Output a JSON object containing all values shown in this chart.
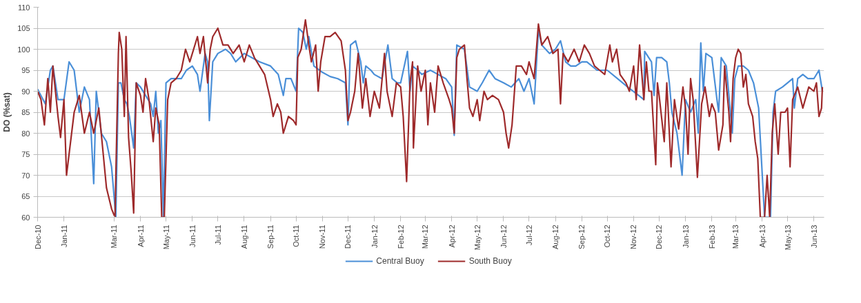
{
  "chart_data": {
    "type": "line",
    "ylabel": "DO (%sat)",
    "xlim": [
      "2010-12-01",
      "2013-06-13"
    ],
    "xticks": [
      {
        "value": "2010-12-01",
        "label": "Dec-10"
      },
      {
        "value": "2011-01-01",
        "label": "Jan-11"
      },
      {
        "value": "2011-03-01",
        "label": "Mar-11"
      },
      {
        "value": "2011-04-01",
        "label": "Apr-11"
      },
      {
        "value": "2011-05-01",
        "label": "May-11"
      },
      {
        "value": "2011-06-01",
        "label": "Jun-11"
      },
      {
        "value": "2011-07-01",
        "label": "Jul-11"
      },
      {
        "value": "2011-08-01",
        "label": "Aug-11"
      },
      {
        "value": "2011-09-01",
        "label": "Sep-11"
      },
      {
        "value": "2011-10-01",
        "label": "Oct-11"
      },
      {
        "value": "2011-11-01",
        "label": "Nov-11"
      },
      {
        "value": "2011-12-01",
        "label": "Dec-11"
      },
      {
        "value": "2012-01-01",
        "label": "Jan-12"
      },
      {
        "value": "2012-02-01",
        "label": "Feb-12"
      },
      {
        "value": "2012-03-01",
        "label": "Mar-12"
      },
      {
        "value": "2012-04-01",
        "label": "Apr-12"
      },
      {
        "value": "2012-05-01",
        "label": "May-12"
      },
      {
        "value": "2012-06-01",
        "label": "Jun-12"
      },
      {
        "value": "2012-07-01",
        "label": "Jul-12"
      },
      {
        "value": "2012-08-01",
        "label": "Aug-12"
      },
      {
        "value": "2012-09-01",
        "label": "Sep-12"
      },
      {
        "value": "2012-10-01",
        "label": "Oct-12"
      },
      {
        "value": "2012-11-01",
        "label": "Nov-12"
      },
      {
        "value": "2012-12-01",
        "label": "Dec-12"
      },
      {
        "value": "2013-01-01",
        "label": "Jan-13"
      },
      {
        "value": "2013-02-01",
        "label": "Feb-13"
      },
      {
        "value": "2013-03-01",
        "label": "Mar-13"
      },
      {
        "value": "2013-04-01",
        "label": "Apr-13"
      },
      {
        "value": "2013-05-01",
        "label": "May-13"
      },
      {
        "value": "2013-06-01",
        "label": "Jun-13"
      }
    ],
    "ylim": [
      60,
      110
    ],
    "yticks": [
      60,
      65,
      70,
      75,
      80,
      85,
      90,
      95,
      100,
      105,
      110
    ],
    "grid": "y",
    "legend": "bottom",
    "line_style": "solid",
    "series": [
      {
        "name": "Central Buoy",
        "color": "#4a8fd8",
        "x": [
          "2010-12-01",
          "2010-12-10",
          "2010-12-16",
          "2010-12-19",
          "2010-12-25",
          "2011-01-01",
          "2011-01-07",
          "2011-01-13",
          "2011-01-19",
          "2011-01-25",
          "2011-01-31",
          "2011-02-05",
          "2011-02-08",
          "2011-02-14",
          "2011-02-20",
          "2011-02-26",
          "2011-03-03",
          "2011-03-06",
          "2011-03-09",
          "2011-03-13",
          "2011-03-16",
          "2011-03-19",
          "2011-03-24",
          "2011-03-27",
          "2011-04-01",
          "2011-04-07",
          "2011-04-13",
          "2011-04-16",
          "2011-04-19",
          "2011-04-22",
          "2011-04-25",
          "2011-04-28",
          "2011-05-01",
          "2011-05-07",
          "2011-05-13",
          "2011-05-19",
          "2011-05-25",
          "2011-06-01",
          "2011-06-07",
          "2011-06-10",
          "2011-06-16",
          "2011-06-19",
          "2011-06-21",
          "2011-06-25",
          "2011-07-01",
          "2011-07-10",
          "2011-07-16",
          "2011-07-22",
          "2011-08-01",
          "2011-08-10",
          "2011-08-19",
          "2011-09-01",
          "2011-09-10",
          "2011-09-16",
          "2011-09-19",
          "2011-09-25",
          "2011-10-01",
          "2011-10-04",
          "2011-10-09",
          "2011-10-13",
          "2011-10-16",
          "2011-10-22",
          "2011-11-01",
          "2011-11-10",
          "2011-11-19",
          "2011-11-28",
          "2011-12-01",
          "2011-12-04",
          "2011-12-10",
          "2011-12-16",
          "2011-12-19",
          "2011-12-22",
          "2011-12-28",
          "2012-01-01",
          "2012-01-10",
          "2012-01-17",
          "2012-01-22",
          "2012-01-28",
          "2012-02-01",
          "2012-02-09",
          "2012-02-12",
          "2012-02-15",
          "2012-02-21",
          "2012-02-26",
          "2012-03-07",
          "2012-03-16",
          "2012-03-25",
          "2012-04-01",
          "2012-04-04",
          "2012-04-07",
          "2012-04-16",
          "2012-04-22",
          "2012-05-01",
          "2012-05-07",
          "2012-05-15",
          "2012-05-22",
          "2012-06-01",
          "2012-06-10",
          "2012-06-19",
          "2012-06-25",
          "2012-07-01",
          "2012-07-07",
          "2012-07-12",
          "2012-07-16",
          "2012-07-25",
          "2012-08-01",
          "2012-08-07",
          "2012-08-13",
          "2012-08-19",
          "2012-08-25",
          "2012-09-01",
          "2012-09-07",
          "2012-09-19",
          "2012-10-01",
          "2012-10-13",
          "2012-10-25",
          "2012-11-07",
          "2012-11-13",
          "2012-11-14",
          "2012-11-22",
          "2012-11-25",
          "2012-11-28",
          "2012-12-04",
          "2012-12-10",
          "2012-12-13",
          "2012-12-16",
          "2012-12-22",
          "2012-12-28",
          "2013-01-01",
          "2013-01-07",
          "2013-01-13",
          "2013-01-16",
          "2013-01-19",
          "2013-01-22",
          "2013-01-25",
          "2013-02-01",
          "2013-02-07",
          "2013-02-09",
          "2013-02-12",
          "2013-02-18",
          "2013-02-25",
          "2013-02-28",
          "2013-03-04",
          "2013-03-10",
          "2013-03-16",
          "2013-03-22",
          "2013-03-28",
          "2013-04-04",
          "2013-04-11",
          "2013-04-14",
          "2013-04-17",
          "2013-04-25",
          "2013-05-01",
          "2013-05-07",
          "2013-05-09",
          "2013-05-13",
          "2013-05-19",
          "2013-05-25",
          "2013-06-01",
          "2013-06-07",
          "2013-06-11"
        ],
        "values": [
          90.5,
          87,
          95,
          96,
          88,
          88,
          97,
          95,
          85,
          91,
          88,
          68,
          90,
          80,
          78,
          72,
          60,
          92,
          92,
          88,
          87,
          84,
          76.5,
          92,
          91,
          89,
          87,
          84,
          90,
          80,
          83,
          60,
          92,
          93,
          93,
          93,
          95,
          96,
          94,
          90,
          99,
          97,
          83,
          97,
          99,
          100,
          99,
          97,
          99,
          98,
          97,
          96,
          94,
          89,
          93,
          93,
          90,
          105,
          104,
          100,
          103,
          96,
          94.5,
          93.5,
          93,
          92,
          82,
          101,
          102,
          97,
          92,
          96,
          95,
          94,
          93,
          101,
          93,
          92,
          92,
          99.5,
          90,
          96,
          95,
          94,
          95,
          94,
          93,
          91,
          79.5,
          101,
          100,
          91,
          90,
          92,
          95,
          93,
          92,
          91,
          93,
          90,
          93,
          87,
          104.5,
          101,
          99,
          100,
          102,
          97,
          96,
          96,
          97,
          97,
          95,
          95,
          93,
          91,
          89,
          88,
          99.5,
          97,
          89,
          98,
          98,
          97,
          92,
          85,
          80,
          70,
          88,
          85,
          88,
          80,
          101.5,
          90,
          99,
          98,
          88,
          85,
          98,
          96,
          80,
          93,
          96,
          96,
          95,
          92,
          86,
          60,
          60,
          85,
          90,
          91,
          92,
          93,
          86,
          93,
          94,
          93,
          93,
          95,
          90
        ]
      },
      {
        "name": "South Buoy",
        "color": "#9e2a2b",
        "x": [
          "2010-12-01",
          "2010-12-05",
          "2010-12-09",
          "2010-12-13",
          "2010-12-16",
          "2010-12-19",
          "2010-12-22",
          "2010-12-25",
          "2010-12-28",
          "2011-01-01",
          "2011-01-04",
          "2011-01-13",
          "2011-01-19",
          "2011-01-25",
          "2011-01-31",
          "2011-02-05",
          "2011-02-11",
          "2011-02-20",
          "2011-02-26",
          "2011-03-02",
          "2011-03-06",
          "2011-03-07",
          "2011-03-10",
          "2011-03-13",
          "2011-03-15",
          "2011-03-18",
          "2011-03-21",
          "2011-03-24",
          "2011-03-27",
          "2011-04-01",
          "2011-04-04",
          "2011-04-07",
          "2011-04-11",
          "2011-04-16",
          "2011-04-19",
          "2011-04-23",
          "2011-04-26",
          "2011-04-29",
          "2011-05-03",
          "2011-05-07",
          "2011-05-13",
          "2011-05-19",
          "2011-05-24",
          "2011-05-29",
          "2011-06-01",
          "2011-06-07",
          "2011-06-10",
          "2011-06-14",
          "2011-06-19",
          "2011-06-22",
          "2011-06-25",
          "2011-07-01",
          "2011-07-07",
          "2011-07-13",
          "2011-07-19",
          "2011-07-26",
          "2011-08-01",
          "2011-08-07",
          "2011-08-13",
          "2011-08-19",
          "2011-08-25",
          "2011-09-01",
          "2011-09-04",
          "2011-09-09",
          "2011-09-13",
          "2011-09-16",
          "2011-09-22",
          "2011-09-28",
          "2011-10-01",
          "2011-10-03",
          "2011-10-07",
          "2011-10-12",
          "2011-10-16",
          "2011-10-19",
          "2011-10-24",
          "2011-10-27",
          "2011-10-30",
          "2011-11-04",
          "2011-11-10",
          "2011-11-16",
          "2011-11-23",
          "2011-11-28",
          "2011-12-01",
          "2011-12-04",
          "2011-12-09",
          "2011-12-13",
          "2011-12-18",
          "2011-12-22",
          "2011-12-27",
          "2012-01-01",
          "2012-01-07",
          "2012-01-13",
          "2012-01-16",
          "2012-01-22",
          "2012-01-27",
          "2012-02-01",
          "2012-02-04",
          "2012-02-08",
          "2012-02-12",
          "2012-02-15",
          "2012-02-16",
          "2012-02-21",
          "2012-02-25",
          "2012-03-01",
          "2012-03-04",
          "2012-03-07",
          "2012-03-12",
          "2012-03-16",
          "2012-03-22",
          "2012-03-29",
          "2012-04-01",
          "2012-04-04",
          "2012-04-07",
          "2012-04-10",
          "2012-04-16",
          "2012-04-19",
          "2012-04-22",
          "2012-04-26",
          "2012-05-01",
          "2012-05-04",
          "2012-05-09",
          "2012-05-13",
          "2012-05-19",
          "2012-05-26",
          "2012-06-01",
          "2012-06-04",
          "2012-06-07",
          "2012-06-11",
          "2012-06-16",
          "2012-06-22",
          "2012-06-28",
          "2012-07-01",
          "2012-07-07",
          "2012-07-12",
          "2012-07-16",
          "2012-07-23",
          "2012-07-29",
          "2012-08-04",
          "2012-08-07",
          "2012-08-10",
          "2012-08-16",
          "2012-08-23",
          "2012-08-29",
          "2012-09-04",
          "2012-09-10",
          "2012-09-16",
          "2012-09-22",
          "2012-09-28",
          "2012-10-04",
          "2012-10-07",
          "2012-10-12",
          "2012-10-16",
          "2012-10-23",
          "2012-10-27",
          "2012-11-01",
          "2012-11-04",
          "2012-11-08",
          "2012-11-13",
          "2012-11-16",
          "2012-11-19",
          "2012-11-22",
          "2012-11-27",
          "2012-11-29",
          "2012-12-01",
          "2012-12-07",
          "2012-12-10",
          "2012-12-15",
          "2012-12-19",
          "2012-12-24",
          "2012-12-29",
          "2013-01-01",
          "2013-01-04",
          "2013-01-07",
          "2013-01-10",
          "2013-01-15",
          "2013-01-20",
          "2013-01-24",
          "2013-01-29",
          "2013-02-01",
          "2013-02-05",
          "2013-02-09",
          "2013-02-14",
          "2013-02-16",
          "2013-02-21",
          "2013-02-23",
          "2013-02-26",
          "2013-03-01",
          "2013-03-04",
          "2013-03-07",
          "2013-03-10",
          "2013-03-13",
          "2013-03-16",
          "2013-03-21",
          "2013-03-24",
          "2013-03-27",
          "2013-03-30",
          "2013-04-04",
          "2013-04-07",
          "2013-04-10",
          "2013-04-13",
          "2013-04-16",
          "2013-04-20",
          "2013-04-23",
          "2013-04-28",
          "2013-05-01",
          "2013-05-04",
          "2013-05-07",
          "2013-05-13",
          "2013-05-19",
          "2013-05-26",
          "2013-06-01",
          "2013-06-04",
          "2013-06-07",
          "2013-06-10",
          "2013-06-11"
        ],
        "values": [
          90,
          88,
          82,
          93,
          85,
          96,
          90,
          84,
          79,
          88,
          70,
          85,
          89,
          80,
          85,
          80,
          86,
          67,
          62,
          60,
          99,
          104,
          100,
          84,
          103,
          79,
          71,
          61,
          92,
          89,
          85,
          93,
          88,
          78,
          86,
          82,
          60,
          60,
          88,
          92,
          93,
          95,
          100,
          97,
          99,
          103,
          99,
          103,
          92,
          100,
          103,
          105,
          101,
          101,
          99,
          101,
          97,
          101,
          98,
          96,
          94,
          88,
          84,
          87,
          85,
          80,
          84,
          83,
          82,
          98,
          100,
          107,
          101,
          97,
          101,
          90,
          97,
          103,
          103,
          104,
          102,
          95,
          83,
          85,
          90,
          99,
          86,
          93,
          84,
          90,
          86,
          99,
          90,
          84,
          92,
          91,
          84,
          68.5,
          92,
          97,
          76.5,
          96,
          90,
          95,
          82,
          92,
          85,
          96,
          92,
          88,
          86,
          80,
          98,
          100,
          101,
          93,
          86,
          84,
          88,
          83,
          90,
          88,
          89,
          88,
          85,
          80,
          76.5,
          82,
          96,
          96,
          94,
          97,
          93,
          106,
          101,
          103,
          99,
          100,
          87,
          99,
          97,
          100,
          97,
          101,
          99,
          96,
          95,
          94,
          101,
          97,
          100,
          94,
          92,
          90,
          96,
          88,
          101,
          88,
          97,
          90,
          90,
          72.5,
          92,
          89,
          78,
          92,
          72,
          88,
          81,
          91,
          86,
          75,
          93,
          88,
          69.5,
          87,
          91,
          84,
          87,
          85,
          76,
          82,
          96,
          85,
          78,
          93,
          98,
          100,
          99,
          91,
          94,
          87,
          84,
          78,
          74,
          60,
          60,
          70,
          60,
          80,
          87,
          75,
          85,
          85,
          86,
          72,
          88,
          91,
          86,
          91,
          90,
          92,
          84,
          86,
          91
        ]
      }
    ]
  }
}
